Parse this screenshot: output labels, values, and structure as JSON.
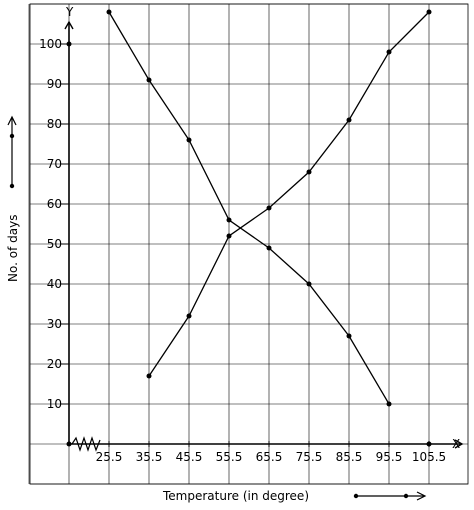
{
  "chart_data": {
    "type": "line",
    "xlabel": "Temperature (in degree)",
    "ylabel": "No. of days",
    "x_axis_letter": "X",
    "y_axis_letter": "Y",
    "x_ticks": [
      "25.5",
      "35.5",
      "45.5",
      "55.5",
      "65.5",
      "75.5",
      "85.5",
      "95.5",
      "105.5"
    ],
    "y_ticks": [
      "10",
      "20",
      "30",
      "40",
      "50",
      "60",
      "70",
      "80",
      "90",
      "100"
    ],
    "ylim": [
      0,
      110
    ],
    "grid": true,
    "series": [
      {
        "x": [
          25.5,
          35.5,
          45.5,
          55.5,
          65.5,
          75.5,
          85.5,
          95.5
        ],
        "y": [
          108,
          91,
          76,
          56,
          49,
          40,
          27,
          10
        ]
      },
      {
        "x": [
          35.5,
          45.5,
          55.5,
          65.5,
          75.5,
          85.5,
          95.5,
          105.5
        ],
        "y": [
          17,
          32,
          52,
          59,
          68,
          81,
          98,
          108
        ]
      }
    ],
    "colors": {
      "line": "#000000",
      "grid": "#000000",
      "background": "#ffffff"
    }
  }
}
